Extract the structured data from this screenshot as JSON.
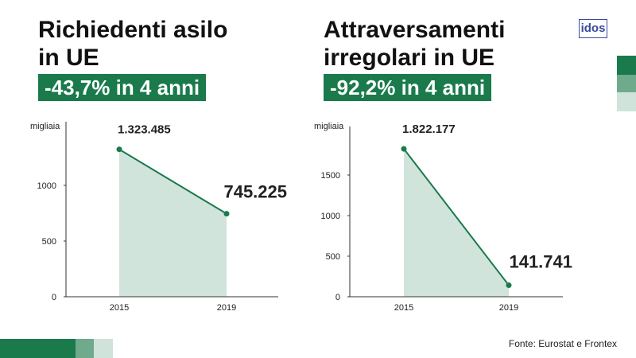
{
  "chart_data": [
    {
      "type": "area",
      "title": "Richiedenti asilo in UE",
      "subtitle": "-43,7% in 4 anni",
      "y_label": "migliaia",
      "categories": [
        "2015",
        "2019"
      ],
      "values": [
        1323.485,
        745.225
      ],
      "value_labels": [
        "1.323.485",
        "745.225"
      ],
      "color": "#1a7a4c",
      "ylim": [
        0,
        1500
      ],
      "yticks": [
        0,
        500,
        1000
      ]
    },
    {
      "type": "area",
      "title": "Attraversamenti irregolari in UE",
      "subtitle": "-92,2% in 4 anni",
      "y_label": "migliaia",
      "categories": [
        "2015",
        "2019"
      ],
      "values": [
        1822.177,
        141.741
      ],
      "value_labels": [
        "1.822.177",
        "141.741"
      ],
      "color": "#1a7a4c",
      "ylim": [
        0,
        2000
      ],
      "yticks": [
        0,
        500,
        1000,
        1500
      ]
    }
  ],
  "source": "Fonte: Eurostat e Frontex",
  "logo": "idos"
}
